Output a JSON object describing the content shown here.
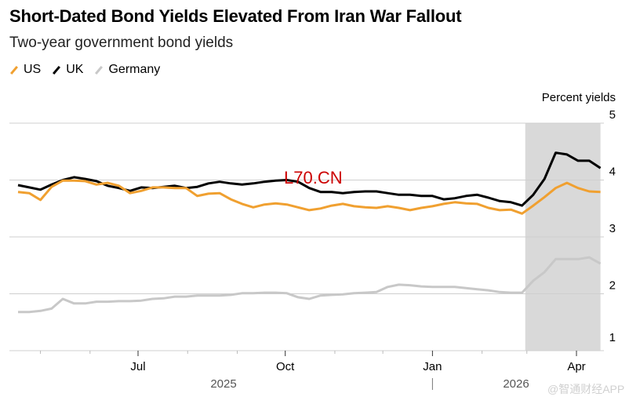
{
  "chart_data": {
    "type": "line",
    "title": "Short-Dated Bond Yields Elevated From Iran War Fallout",
    "subtitle": "Two-year government bond yields",
    "ylabel": "Percent yields",
    "ylim": [
      1,
      5
    ],
    "yticks": [
      "5",
      "4",
      "3",
      "2",
      "1"
    ],
    "xtick_labels": [
      "Jul",
      "Oct",
      "Jan",
      "Apr"
    ],
    "xtick_dates": [
      "2025-07-01",
      "2025-10-01",
      "2026-01-01",
      "2026-04-01"
    ],
    "year_labels": [
      "2025",
      "2026"
    ],
    "grid": true,
    "legend_placement": "top-left",
    "shaded_region": [
      "2026-02-28",
      "2026-04-16"
    ],
    "x": [
      "2025-04-17",
      "2025-04-24",
      "2025-05-01",
      "2025-05-08",
      "2025-05-15",
      "2025-05-22",
      "2025-05-29",
      "2025-06-05",
      "2025-06-12",
      "2025-06-19",
      "2025-06-26",
      "2025-07-03",
      "2025-07-10",
      "2025-07-17",
      "2025-07-24",
      "2025-07-31",
      "2025-08-07",
      "2025-08-14",
      "2025-08-21",
      "2025-08-28",
      "2025-09-04",
      "2025-09-11",
      "2025-09-18",
      "2025-09-25",
      "2025-10-02",
      "2025-10-09",
      "2025-10-16",
      "2025-10-23",
      "2025-10-30",
      "2025-11-06",
      "2025-11-13",
      "2025-11-20",
      "2025-11-27",
      "2025-12-04",
      "2025-12-11",
      "2025-12-18",
      "2025-12-25",
      "2026-01-01",
      "2026-01-08",
      "2026-01-15",
      "2026-01-22",
      "2026-01-29",
      "2026-02-05",
      "2026-02-12",
      "2026-02-19",
      "2026-02-26",
      "2026-03-05",
      "2026-03-12",
      "2026-03-19",
      "2026-03-26",
      "2026-04-02",
      "2026-04-09",
      "2026-04-16"
    ],
    "series": [
      {
        "name": "Germany",
        "color": "#c8c8c8",
        "values": [
          1.68,
          1.68,
          1.7,
          1.74,
          1.91,
          1.83,
          1.83,
          1.86,
          1.86,
          1.87,
          1.87,
          1.88,
          1.91,
          1.92,
          1.95,
          1.95,
          1.97,
          1.97,
          1.97,
          1.98,
          2.01,
          2.01,
          2.02,
          2.02,
          2.01,
          1.94,
          1.91,
          1.97,
          1.98,
          1.99,
          2.01,
          2.02,
          2.03,
          2.12,
          2.16,
          2.15,
          2.13,
          2.12,
          2.12,
          2.12,
          2.1,
          2.08,
          2.06,
          2.03,
          2.02,
          2.02,
          2.23,
          2.38,
          2.61,
          2.61,
          2.61,
          2.64,
          2.53
        ]
      },
      {
        "name": "UK",
        "color": "#000000",
        "values": [
          3.91,
          3.87,
          3.83,
          3.92,
          4.0,
          4.05,
          4.02,
          3.98,
          3.9,
          3.86,
          3.81,
          3.87,
          3.86,
          3.88,
          3.9,
          3.86,
          3.88,
          3.94,
          3.97,
          3.94,
          3.92,
          3.94,
          3.97,
          3.99,
          4.0,
          3.97,
          3.86,
          3.79,
          3.79,
          3.77,
          3.79,
          3.8,
          3.8,
          3.77,
          3.74,
          3.74,
          3.72,
          3.72,
          3.66,
          3.68,
          3.72,
          3.74,
          3.69,
          3.63,
          3.61,
          3.55,
          3.74,
          4.02,
          4.48,
          4.45,
          4.34,
          4.34,
          4.21
        ]
      },
      {
        "name": "US",
        "color": "#f0a030",
        "values": [
          3.79,
          3.77,
          3.65,
          3.88,
          3.99,
          3.99,
          3.98,
          3.92,
          3.95,
          3.9,
          3.77,
          3.81,
          3.87,
          3.87,
          3.86,
          3.86,
          3.72,
          3.76,
          3.77,
          3.66,
          3.58,
          3.52,
          3.57,
          3.59,
          3.57,
          3.52,
          3.47,
          3.5,
          3.55,
          3.58,
          3.54,
          3.52,
          3.51,
          3.54,
          3.51,
          3.47,
          3.51,
          3.54,
          3.58,
          3.61,
          3.59,
          3.58,
          3.51,
          3.47,
          3.48,
          3.41,
          3.55,
          3.7,
          3.86,
          3.95,
          3.86,
          3.8,
          3.79
        ]
      }
    ],
    "legend": [
      "US",
      "UK",
      "Germany"
    ]
  },
  "watermarks": [
    "L70.CN",
    "@智通财经APP"
  ]
}
